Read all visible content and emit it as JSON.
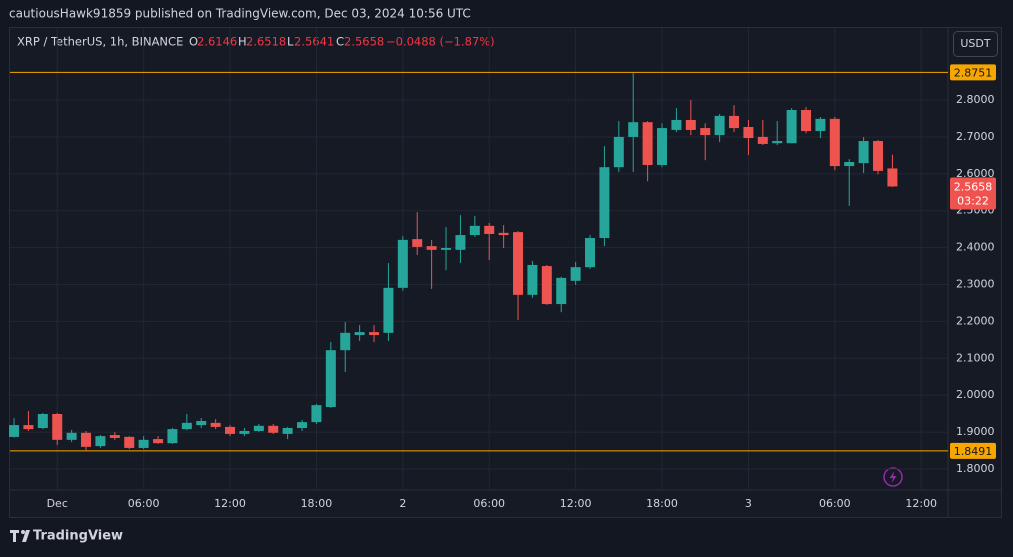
{
  "header": "cautiousHawk91859 published on TradingView.com, Dec 03, 2024 10:56 UTC",
  "brand": "TradingView",
  "chart_data": {
    "type": "candlestick",
    "legend": {
      "symbol": "XRP / TetherUS, 1h, BINANCE",
      "labels": [
        "O",
        "H",
        "L",
        "C"
      ],
      "change": "−0.0488 (−1.87%)"
    },
    "currency": "USDT",
    "countdown": "03:22",
    "up_color": "#26a69a",
    "down_color": "#ef5350",
    "open": [
      1.887,
      1.919,
      1.911,
      1.949,
      1.879,
      1.898,
      1.862,
      1.892,
      1.887,
      1.857,
      1.881,
      1.87,
      1.908,
      1.919,
      1.925,
      1.914,
      1.895,
      1.903,
      1.917,
      1.895,
      1.911,
      1.927,
      1.968,
      2.122,
      2.163,
      2.171,
      2.169,
      2.291,
      2.423,
      2.404,
      2.394,
      2.394,
      2.434,
      2.459,
      2.44,
      2.442,
      2.272,
      2.35,
      2.247,
      2.31,
      2.347,
      2.426,
      2.618,
      2.7,
      2.74,
      2.624,
      2.719,
      2.746,
      2.724,
      2.705,
      2.757,
      2.727,
      2.7,
      2.683,
      2.683,
      2.773,
      2.716,
      2.749,
      2.621,
      2.629,
      2.689,
      2.6146
    ],
    "high": [
      1.938,
      1.957,
      1.952,
      1.952,
      1.906,
      1.903,
      1.892,
      1.9,
      1.889,
      1.889,
      1.889,
      1.911,
      1.949,
      1.938,
      1.935,
      1.919,
      1.911,
      1.922,
      1.922,
      1.914,
      1.933,
      1.976,
      2.144,
      2.198,
      2.19,
      2.19,
      2.358,
      2.431,
      2.496,
      2.421,
      2.456,
      2.488,
      2.486,
      2.467,
      2.461,
      2.445,
      2.364,
      2.353,
      2.321,
      2.361,
      2.434,
      2.675,
      2.743,
      2.873,
      2.743,
      2.737,
      2.778,
      2.8,
      2.737,
      2.762,
      2.786,
      2.746,
      2.746,
      2.743,
      2.778,
      2.781,
      2.754,
      2.754,
      2.64,
      2.7,
      2.692,
      2.6518
    ],
    "low": [
      1.885,
      1.903,
      1.908,
      1.865,
      1.873,
      1.851,
      1.857,
      1.879,
      1.854,
      1.854,
      1.868,
      1.868,
      1.905,
      1.911,
      1.908,
      1.889,
      1.889,
      1.9,
      1.895,
      1.881,
      1.903,
      1.922,
      1.965,
      2.063,
      2.147,
      2.144,
      2.147,
      2.283,
      2.38,
      2.288,
      2.339,
      2.358,
      2.429,
      2.366,
      2.399,
      2.204,
      2.264,
      2.245,
      2.225,
      2.299,
      2.342,
      2.404,
      2.605,
      2.605,
      2.58,
      2.618,
      2.713,
      2.705,
      2.637,
      2.686,
      2.713,
      2.651,
      2.678,
      2.678,
      2.683,
      2.71,
      2.697,
      2.61,
      2.513,
      2.602,
      2.599,
      2.5641
    ],
    "close": [
      1.919,
      1.908,
      1.949,
      1.879,
      1.898,
      1.86,
      1.889,
      1.884,
      1.857,
      1.879,
      1.87,
      1.908,
      1.925,
      1.93,
      1.914,
      1.895,
      1.903,
      1.917,
      1.898,
      1.911,
      1.927,
      1.973,
      2.122,
      2.169,
      2.171,
      2.163,
      2.291,
      2.421,
      2.402,
      2.394,
      2.399,
      2.434,
      2.459,
      2.437,
      2.434,
      2.272,
      2.353,
      2.247,
      2.318,
      2.347,
      2.426,
      2.618,
      2.7,
      2.74,
      2.624,
      2.724,
      2.746,
      2.719,
      2.705,
      2.757,
      2.724,
      2.697,
      2.681,
      2.689,
      2.773,
      2.716,
      2.749,
      2.621,
      2.632,
      2.689,
      2.608,
      2.5658
    ],
    "xlim": [
      -0.28,
      64.86
    ],
    "xticks": [
      {
        "value": 3,
        "label": "Dec"
      },
      {
        "value": 9,
        "label": "06:00"
      },
      {
        "value": 15,
        "label": "12:00"
      },
      {
        "value": 21,
        "label": "18:00"
      },
      {
        "value": 27,
        "label": "2"
      },
      {
        "value": 33,
        "label": "06:00"
      },
      {
        "value": 39,
        "label": "12:00"
      },
      {
        "value": 45,
        "label": "18:00"
      },
      {
        "value": 51,
        "label": "3"
      },
      {
        "value": 57,
        "label": "06:00"
      },
      {
        "value": 63,
        "label": "12:00"
      }
    ],
    "ylim": [
      1.743,
      2.998
    ],
    "yticks": [
      {
        "value": 1.8,
        "label": "1.8000"
      },
      {
        "value": 1.9,
        "label": "1.9000"
      },
      {
        "value": 2.0,
        "label": "2.0000"
      },
      {
        "value": 2.1,
        "label": "2.1000"
      },
      {
        "value": 2.2,
        "label": "2.2000"
      },
      {
        "value": 2.3,
        "label": "2.3000"
      },
      {
        "value": 2.4,
        "label": "2.4000"
      },
      {
        "value": 2.5,
        "label": "2.5000"
      },
      {
        "value": 2.6,
        "label": "2.6000"
      },
      {
        "value": 2.7,
        "label": "2.7000"
      },
      {
        "value": 2.8,
        "label": "2.8000"
      }
    ],
    "hlines": [
      {
        "value": 2.8751,
        "color": "#f7a600"
      },
      {
        "value": 1.8491,
        "color": "#f7a600"
      }
    ],
    "grid": true
  }
}
